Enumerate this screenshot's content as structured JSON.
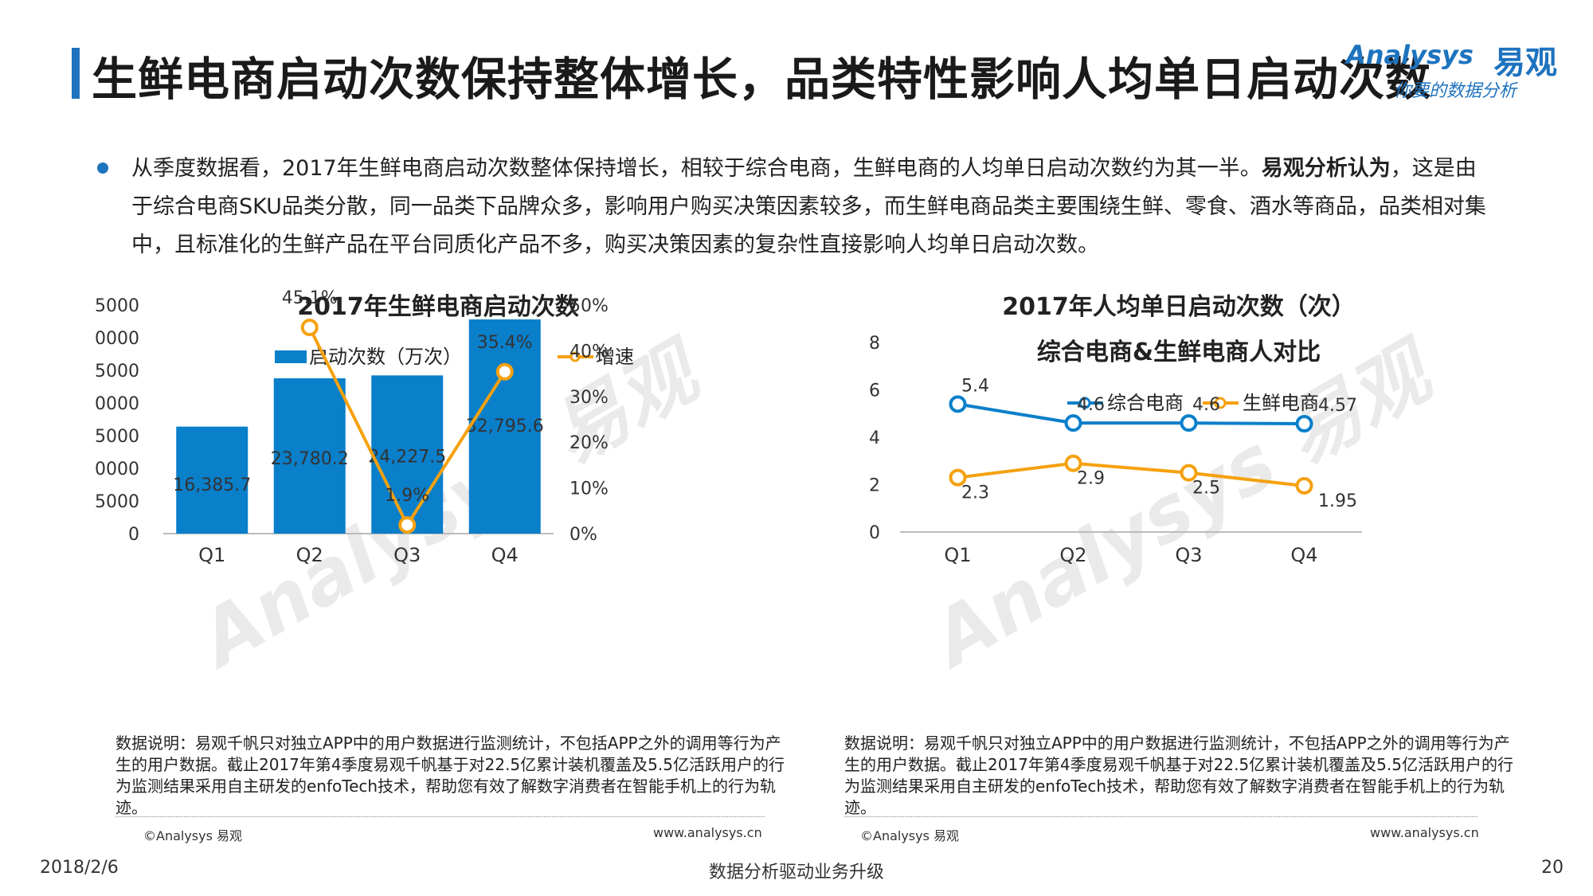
{
  "header": {
    "title": "生鲜电商启动次数保持整体增长，品类特性影响人均单日启动次数",
    "logo_en": "Analysys",
    "logo_cn": "易观",
    "logo_tagline": "你要的数据分析"
  },
  "bullet": {
    "part1": "从季度数据看，2017年生鲜电商启动次数整体保持增长，相较于综合电商，生鲜电商的人均单日启动次数约为其一半。",
    "bold": "易观分析认为",
    "part2": "，这是由于综合电商SKU品类分散，同一品类下品牌众多，影响用户购买决策因素较多，而生鲜电商品类主要围绕生鲜、零食、酒水等商品，品类相对集中，且标准化的生鲜产品在平台同质化产品不多，购买决策因素的复杂性直接影响人均单日启动次数。"
  },
  "notes": {
    "left": "数据说明：易观千帆只对独立APP中的用户数据进行监测统计，不包括APP之外的调用等行为产生的用户数据。截止2017年第4季度易观千帆基于对22.5亿累计装机覆盖及5.5亿活跃用户的行为监测结果采用自主研发的enfoTech技术，帮助您有效了解数字消费者在智能手机上的行为轨迹。",
    "right": "数据说明：易观千帆只对独立APP中的用户数据进行监测统计，不包括APP之外的调用等行为产生的用户数据。截止2017年第4季度易观千帆基于对22.5亿累计装机覆盖及5.5亿活跃用户的行为监测结果采用自主研发的enfoTech技术，帮助您有效了解数字消费者在智能手机上的行为轨迹。",
    "copyright": "©Analysys 易观",
    "website": "www.analysys.cn"
  },
  "footer": {
    "date": "2018/2/6",
    "center": "数据分析驱动业务升级",
    "page": "20"
  },
  "colors": {
    "blue": "#0a7fca",
    "orange": "#f5a10f",
    "title_bar": "#1e73be"
  },
  "chart_data": [
    {
      "type": "bar",
      "title": "2017年生鲜电商启动次数",
      "categories": [
        "Q1",
        "Q2",
        "Q3",
        "Q4"
      ],
      "series": [
        {
          "name": "启动次数（万次）",
          "type": "bar",
          "axis": "left",
          "values": [
            16385.7,
            23780.2,
            24227.5,
            32795.6
          ],
          "labels": [
            "16,385.7",
            "23,780.2",
            "24,227.5",
            "32,795.6"
          ]
        },
        {
          "name": "增速",
          "type": "line",
          "axis": "right",
          "values": [
            null,
            45.1,
            1.9,
            35.4
          ],
          "labels": [
            "",
            "45.1%",
            "1.9%",
            "35.4%"
          ]
        }
      ],
      "ylim": [
        0,
        35000
      ],
      "yticks": [
        "0",
        "5000",
        "10000",
        "15000",
        "20000",
        "25000",
        "30000",
        "35000"
      ],
      "y2lim": [
        0,
        50
      ],
      "y2ticks": [
        "0%",
        "10%",
        "20%",
        "30%",
        "40%",
        "50%"
      ],
      "legend": "top"
    },
    {
      "type": "line",
      "title": "2017年人均单日启动次数（次）",
      "subtitle": "综合电商&生鲜电商人对比",
      "categories": [
        "Q1",
        "Q2",
        "Q3",
        "Q4"
      ],
      "series": [
        {
          "name": "综合电商",
          "values": [
            5.4,
            4.6,
            4.6,
            4.57
          ],
          "labels": [
            "5.4",
            "4.6",
            "4.6",
            "4.57"
          ]
        },
        {
          "name": "生鲜电商",
          "values": [
            2.3,
            2.9,
            2.5,
            1.95
          ],
          "labels": [
            "2.3",
            "2.9",
            "2.5",
            "1.95"
          ]
        }
      ],
      "ylim": [
        0,
        8
      ],
      "yticks": [
        "0",
        "2",
        "4",
        "6",
        "8"
      ],
      "legend": "top"
    }
  ]
}
